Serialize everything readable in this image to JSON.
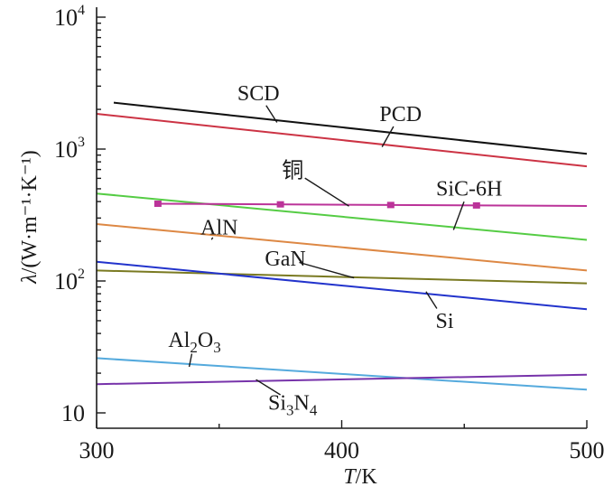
{
  "chart_data": {
    "type": "line",
    "title": "",
    "xlabel": "T/K",
    "xlabel_parts": {
      "symbol": "T",
      "unit": "/K"
    },
    "ylabel": "λ/(W·m⁻¹·K⁻¹)",
    "ylabel_parts": {
      "symbol": "λ",
      "unit": "/(W·m⁻¹·K⁻¹)"
    },
    "xlim": [
      300,
      500
    ],
    "ylim": [
      7,
      10000
    ],
    "yscale": "log",
    "x_ticks": [
      300,
      400,
      500
    ],
    "x_tick_labels": [
      "300",
      "400",
      "500"
    ],
    "y_ticks": [
      10,
      100,
      1000,
      10000
    ],
    "y_tick_labels": [
      {
        "base": "10",
        "exp": ""
      },
      {
        "base": "10",
        "exp": "2"
      },
      {
        "base": "10",
        "exp": "3"
      },
      {
        "base": "10",
        "exp": "4"
      }
    ],
    "series": [
      {
        "name": "SCD",
        "color": "#111111",
        "x": [
          307,
          500
        ],
        "values": [
          2250,
          920
        ]
      },
      {
        "name": "PCD",
        "color": "#cc3344",
        "x": [
          300,
          500
        ],
        "values": [
          1850,
          740
        ]
      },
      {
        "name": "SiC-6H",
        "color": "#55cc44",
        "x": [
          300,
          500
        ],
        "values": [
          460,
          205
        ]
      },
      {
        "name": "铜",
        "color": "#bb3399",
        "x": [
          325,
          500
        ],
        "values": [
          385,
          370
        ],
        "marker_x": [
          325,
          375,
          420,
          455
        ]
      },
      {
        "name": "AlN",
        "color": "#dd8844",
        "x": [
          300,
          500
        ],
        "values": [
          270,
          120
        ]
      },
      {
        "name": "GaN",
        "color": "#7a7a22",
        "x": [
          300,
          500
        ],
        "values": [
          120,
          96
        ]
      },
      {
        "name": "Si",
        "color": "#2233cc",
        "x": [
          300,
          500
        ],
        "values": [
          140,
          61
        ]
      },
      {
        "name": "Al₂O₃",
        "color": "#55aadd",
        "x": [
          300,
          500
        ],
        "values": [
          26,
          15
        ]
      },
      {
        "name": "Si₃N₄",
        "color": "#7733aa",
        "x": [
          300,
          500
        ],
        "values": [
          16.5,
          19.5
        ]
      }
    ],
    "annotations": [
      {
        "series": "SCD",
        "text": "SCD",
        "parts": [
          {
            "t": "SCD"
          }
        ],
        "leader_x": 373,
        "text_x": 366,
        "text_y": 2650
      },
      {
        "series": "PCD",
        "text": "PCD",
        "parts": [
          {
            "t": "PCD"
          }
        ],
        "leader_x": 417,
        "text_x": 424,
        "text_y": 1850
      },
      {
        "series": "铜",
        "text": "铜",
        "parts": [
          {
            "t": "铜"
          }
        ],
        "leader_x": 402,
        "text_x": 380,
        "text_y": 690
      },
      {
        "series": "SiC-6H",
        "text": "SiC-6H",
        "parts": [
          {
            "t": "SiC-6H"
          }
        ],
        "leader_x": 446,
        "text_x": 452,
        "text_y": 505
      },
      {
        "series": "AlN",
        "text": "AlN",
        "parts": [
          {
            "t": "AlN"
          }
        ],
        "leader_x": 348,
        "text_x": 350,
        "text_y": 255
      },
      {
        "series": "GaN",
        "text": "GaN",
        "parts": [
          {
            "t": "GaN"
          }
        ],
        "leader_x": 404,
        "text_x": 377,
        "text_y": 148
      },
      {
        "series": "Si",
        "text": "Si",
        "parts": [
          {
            "t": "Si"
          }
        ],
        "leader_x": 435,
        "text_x": 442,
        "text_y": 50
      },
      {
        "series": "Al₂O₃",
        "text": "Al₂O₃",
        "parts": [
          {
            "t": "Al"
          },
          {
            "t": "2",
            "sub": true
          },
          {
            "t": "O"
          },
          {
            "t": "3",
            "sub": true
          }
        ],
        "leader_x": 338,
        "text_x": 340,
        "text_y": 36
      },
      {
        "series": "Si₃N₄",
        "text": "Si₃N₄",
        "parts": [
          {
            "t": "Si"
          },
          {
            "t": "3",
            "sub": true
          },
          {
            "t": "N"
          },
          {
            "t": "4",
            "sub": true
          }
        ],
        "leader_x": 366,
        "text_x": 380,
        "text_y": 12
      }
    ]
  }
}
